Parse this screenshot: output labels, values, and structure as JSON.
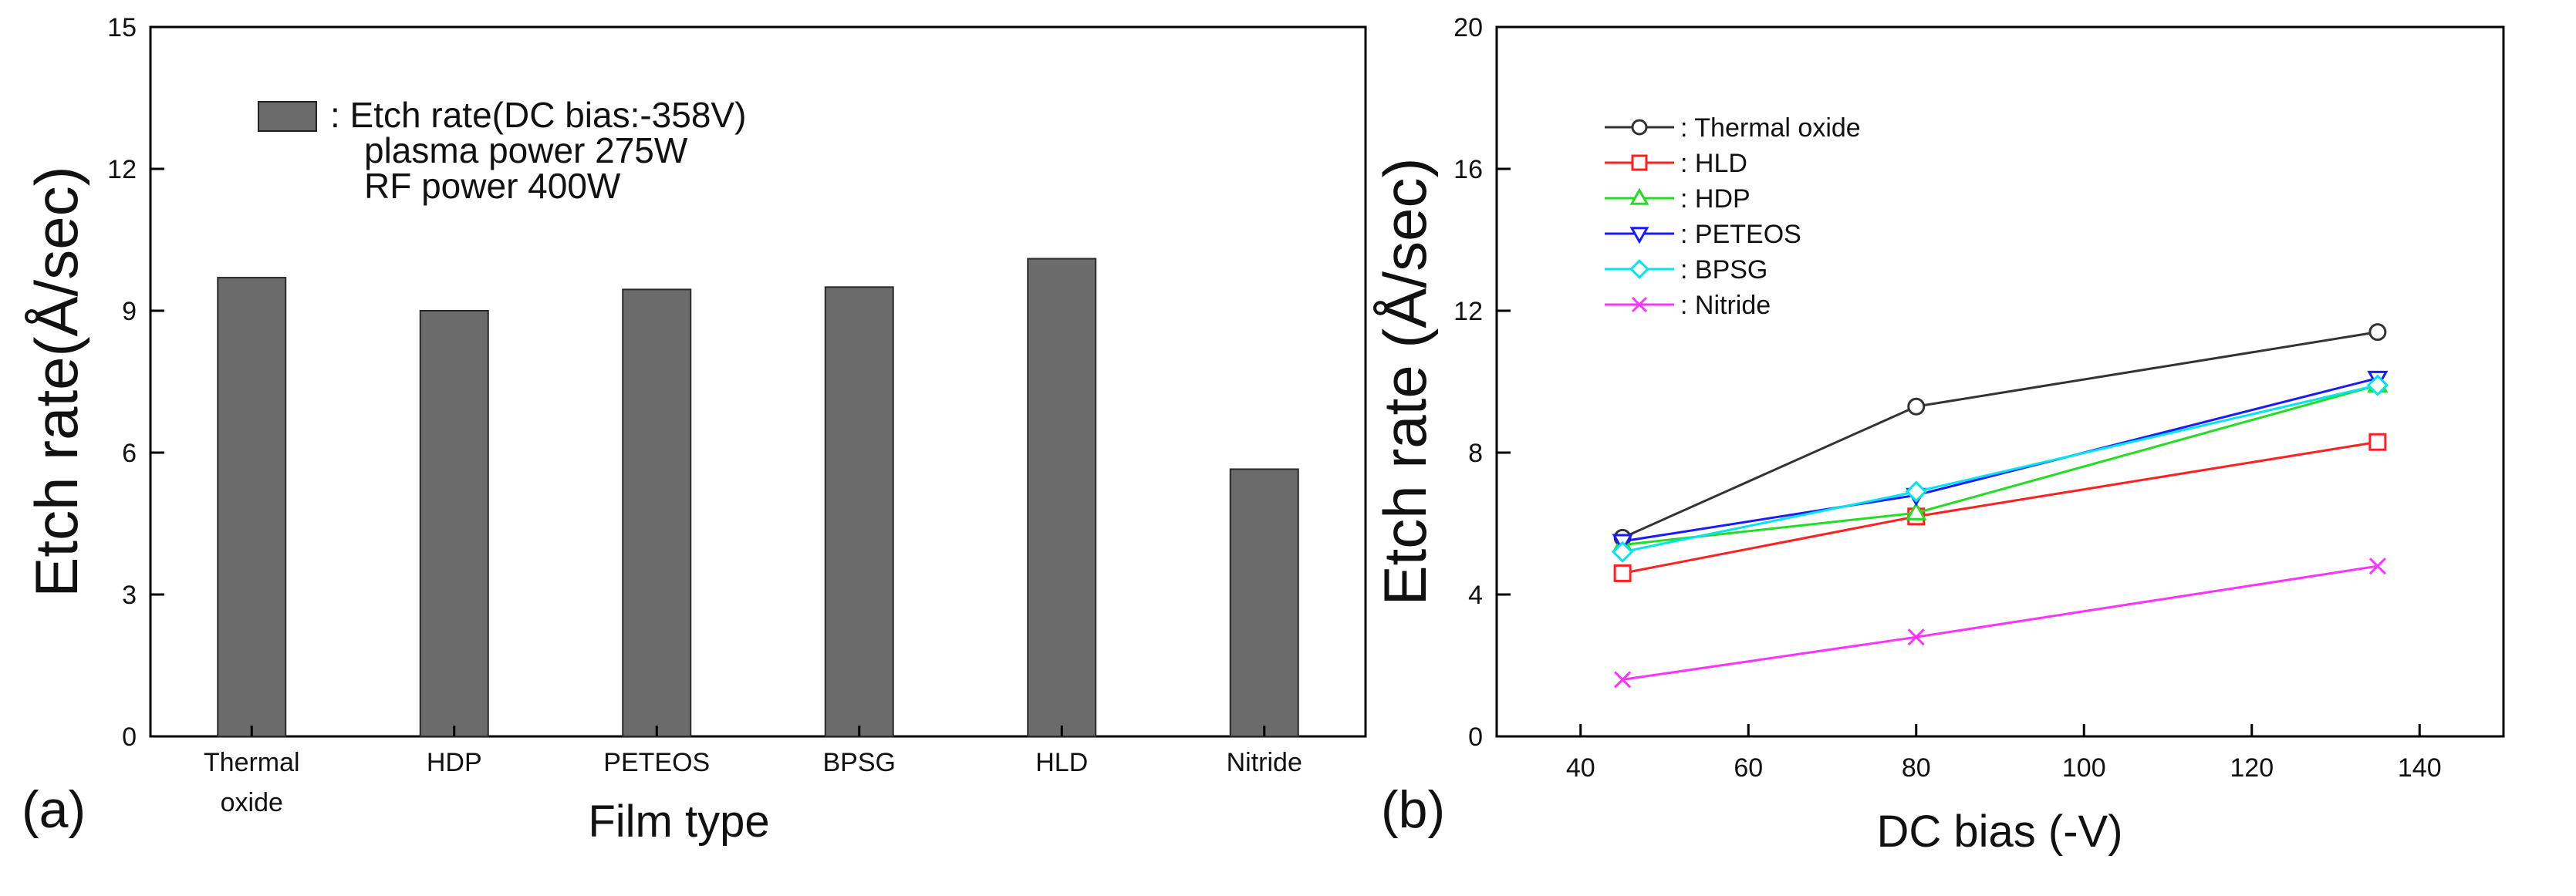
{
  "chart_data": [
    {
      "type": "bar",
      "panel_label": "(a)",
      "xlabel": "Film type",
      "ylabel": "Etch rate(Å/sec)",
      "categories": [
        [
          "Thermal",
          "oxide"
        ],
        [
          "HDP"
        ],
        [
          "PETEOS"
        ],
        [
          "BPSG"
        ],
        [
          "HLD"
        ],
        [
          "Nitride"
        ]
      ],
      "values": [
        9.7,
        9.0,
        9.45,
        9.5,
        10.1,
        5.65
      ],
      "ylim": [
        0,
        15
      ],
      "yticks": [
        0,
        3,
        6,
        9,
        12,
        15
      ],
      "bar_color": "#6b6b6b",
      "legend": {
        "label": ": Etch rate(DC bias:-358V)",
        "notes": [
          "plasma power 275W",
          "RF power 400W"
        ]
      }
    },
    {
      "type": "line",
      "panel_label": "(b)",
      "xlabel": "DC bias (-V)",
      "ylabel": "Etch rate (Å/sec)",
      "x": [
        45,
        80,
        135
      ],
      "xlim": [
        30,
        150
      ],
      "xticks": [
        40,
        60,
        80,
        100,
        120,
        140
      ],
      "ylim": [
        0,
        20
      ],
      "yticks": [
        0,
        4,
        8,
        12,
        16,
        20
      ],
      "series": [
        {
          "name": ": Thermal oxide",
          "marker": "circle",
          "color": "#333333",
          "values": [
            5.6,
            9.3,
            11.4
          ]
        },
        {
          "name": ": HLD",
          "marker": "square",
          "color": "#ff2020",
          "values": [
            4.6,
            6.2,
            8.3
          ]
        },
        {
          "name": ": HDP",
          "marker": "triangle-up",
          "color": "#22dd22",
          "values": [
            5.4,
            6.3,
            9.9
          ]
        },
        {
          "name": ": PETEOS",
          "marker": "triangle-down",
          "color": "#1a1aff",
          "values": [
            5.5,
            6.8,
            10.1
          ]
        },
        {
          "name": ": BPSG",
          "marker": "diamond",
          "color": "#00e5ee",
          "values": [
            5.2,
            6.9,
            9.9
          ]
        },
        {
          "name": ": Nitride",
          "marker": "x",
          "color": "#ff33ff",
          "values": [
            1.6,
            2.8,
            4.8
          ]
        }
      ]
    }
  ]
}
